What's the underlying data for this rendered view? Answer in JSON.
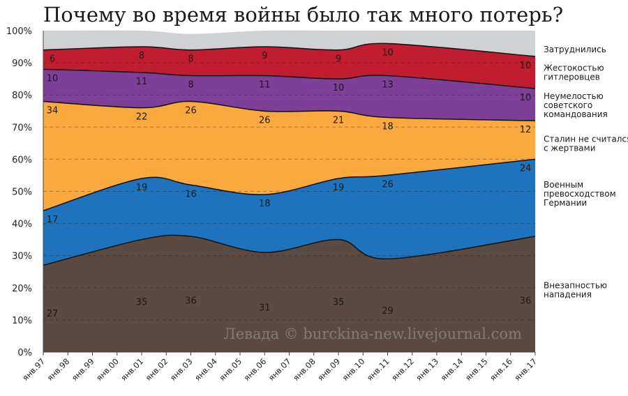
{
  "chart_data": {
    "type": "area",
    "title": "Почему во время войны было так много потерь?",
    "watermark": "Левада © burckina-new.livejournal.com",
    "x_ticks": [
      "янв.97",
      "янв.98",
      "янв.99",
      "янв.00",
      "янв.01",
      "янв.02",
      "янв.03",
      "янв.04",
      "янв.05",
      "янв.06",
      "янв.07",
      "янв.08",
      "янв.09",
      "янв.10",
      "янв.11",
      "янв.12",
      "янв.13",
      "янв.14",
      "янв.15",
      "янв.16",
      "янв.17"
    ],
    "y_ticks": [
      "0%",
      "10%",
      "20%",
      "30%",
      "40%",
      "50%",
      "60%",
      "70%",
      "80%",
      "90%",
      "100%"
    ],
    "ylim": [
      0,
      100
    ],
    "stacked": true,
    "x": [
      "янв.97",
      "янв.01",
      "янв.03",
      "янв.06",
      "янв.09",
      "янв.11",
      "янв.17"
    ],
    "series": [
      {
        "name": "Внезапностью нападения",
        "color": "#5a4a42",
        "values": [
          27,
          35,
          36,
          31,
          35,
          29,
          36
        ]
      },
      {
        "name": "Военным превосходством Германии",
        "color": "#1f73bd",
        "values": [
          17,
          19,
          16,
          18,
          19,
          26,
          24
        ]
      },
      {
        "name": "Сталин не считался с жертвами",
        "color": "#f9a93e",
        "values": [
          34,
          22,
          26,
          26,
          21,
          18,
          12
        ]
      },
      {
        "name": "Неумелостью советского командования",
        "color": "#7d3f98",
        "values": [
          10,
          11,
          8,
          11,
          10,
          13,
          10
        ]
      },
      {
        "name": "Жестокостью гитлеровцев",
        "color": "#c11d30",
        "values": [
          6,
          8,
          8,
          9,
          9,
          10,
          10
        ]
      },
      {
        "name": "Затруднились",
        "color": "#d0d1d3",
        "values": [
          6,
          5,
          5,
          5,
          6,
          4,
          8
        ]
      }
    ],
    "data_labels": [
      {
        "series": 0,
        "values": [
          "27",
          "35",
          "36",
          "31",
          "35",
          "29",
          "36"
        ]
      },
      {
        "series": 1,
        "values": [
          "17",
          "19",
          "16",
          "18",
          "19",
          "26",
          "24"
        ]
      },
      {
        "series": 2,
        "values": [
          "34",
          "22",
          "26",
          "26",
          "21",
          "18",
          "12"
        ]
      },
      {
        "series": 3,
        "values": [
          "10",
          "11",
          "8",
          "11",
          "10",
          "13",
          "10"
        ]
      },
      {
        "series": 4,
        "values": [
          "6",
          "8",
          "8",
          "9",
          "9",
          "10",
          "10"
        ]
      }
    ],
    "legend": [
      {
        "lines": [
          "Затруднились"
        ]
      },
      {
        "lines": [
          "Жестокостью",
          "гитлеровцев"
        ]
      },
      {
        "lines": [
          "Неумелостью",
          "советского",
          "командования"
        ]
      },
      {
        "lines": [
          "Сталин не считался",
          "с жертвами"
        ]
      },
      {
        "lines": [
          "Военным",
          "превосходством",
          "Германии"
        ]
      },
      {
        "lines": [
          "Внезапностью",
          "нападения"
        ]
      }
    ],
    "legend_placement": "right",
    "grid": "dashed horizontal"
  }
}
